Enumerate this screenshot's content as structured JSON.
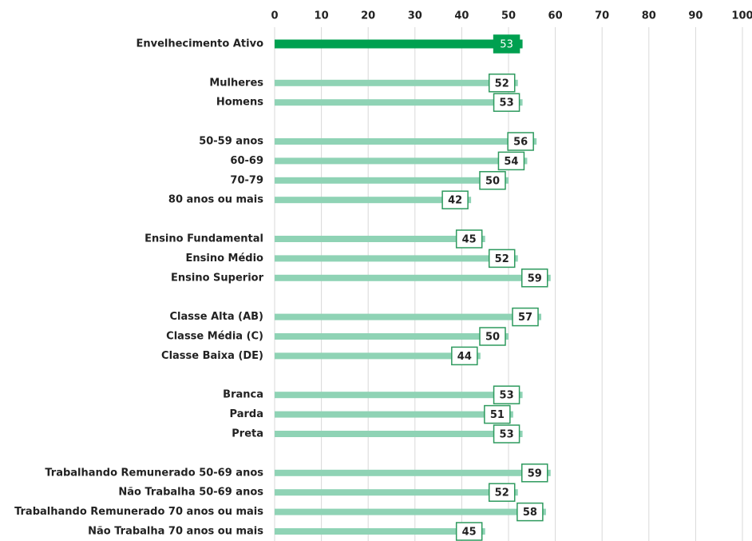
{
  "chart_data": {
    "type": "barh",
    "categories": [
      "Envelhecimento Ativo",
      null,
      "Mulheres",
      "Homens",
      null,
      "50-59 anos",
      "60-69",
      "70-79",
      "80 anos ou mais",
      null,
      "Ensino Fundamental",
      "Ensino Médio",
      "Ensino Superior",
      null,
      "Classe Alta (AB)",
      "Classe Média (C)",
      "Classe Baixa (DE)",
      null,
      "Branca",
      "Parda",
      "Preta",
      null,
      "Trabalhando Remunerado 50-69 anos",
      "Não Trabalha 50-69 anos",
      "Trabalhando Remunerado 70 anos ou mais",
      "Não Trabalha 70 anos ou mais"
    ],
    "values": [
      53,
      null,
      52,
      53,
      null,
      56,
      54,
      50,
      42,
      null,
      45,
      52,
      59,
      null,
      57,
      50,
      44,
      null,
      53,
      51,
      53,
      null,
      59,
      52,
      58,
      45
    ],
    "colors": [
      "#00a050",
      null,
      "#8fd3b5",
      "#8fd3b5",
      null,
      "#8fd3b5",
      "#8fd3b5",
      "#8fd3b5",
      "#8fd3b5",
      null,
      "#8fd3b5",
      "#8fd3b5",
      "#8fd3b5",
      null,
      "#8fd3b5",
      "#8fd3b5",
      "#8fd3b5",
      null,
      "#8fd3b5",
      "#8fd3b5",
      "#8fd3b5",
      null,
      "#8fd3b5",
      "#8fd3b5",
      "#8fd3b5",
      "#8fd3b5"
    ],
    "xlim": [
      0,
      100
    ],
    "xticks": [
      0,
      10,
      20,
      30,
      40,
      50,
      60,
      70,
      80,
      90,
      100
    ],
    "grid": true
  }
}
